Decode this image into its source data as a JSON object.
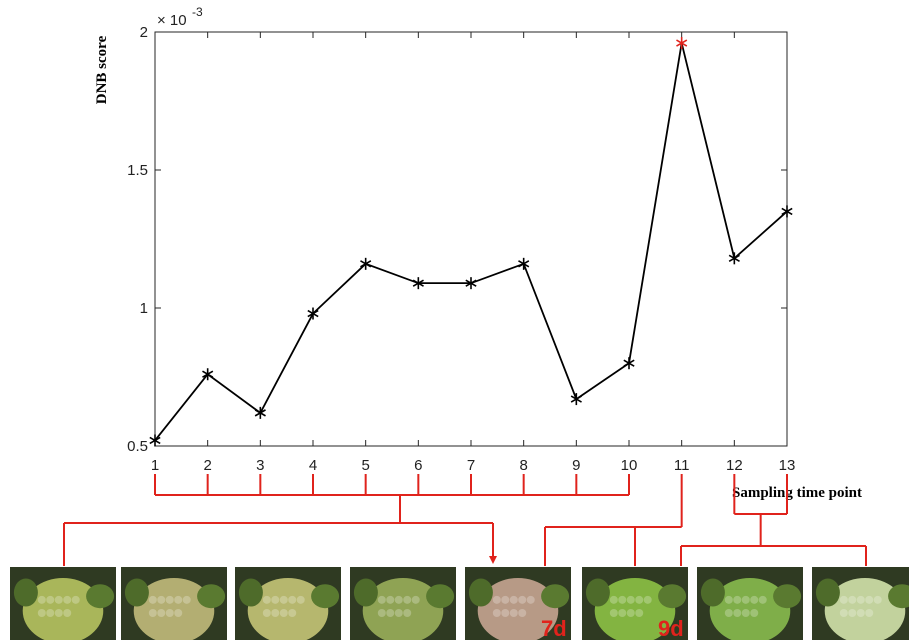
{
  "chart_data": {
    "type": "line",
    "title": "",
    "ylabel": "DNB score",
    "xlabel": "Sampling time point",
    "y_exponent_label": "× 10",
    "y_exponent_power": "-3",
    "ylim": [
      0.5,
      2.0
    ],
    "xlim": [
      1,
      13
    ],
    "x": [
      1,
      2,
      3,
      4,
      5,
      6,
      7,
      8,
      9,
      10,
      11,
      12,
      13
    ],
    "x_tick_labels": [
      "1",
      "2",
      "3",
      "4",
      "5",
      "6",
      "7",
      "8",
      "9",
      "10",
      "11",
      "12",
      "13"
    ],
    "y_ticks": [
      0.5,
      1.0,
      1.5,
      2.0
    ],
    "y_tick_labels": [
      "0.5",
      "1",
      "1.5",
      "2"
    ],
    "series": [
      {
        "values": [
          0.52,
          0.76,
          0.62,
          0.98,
          1.16,
          1.09,
          1.09,
          1.16,
          0.67,
          0.8,
          1.96,
          1.18,
          1.35
        ],
        "line_color": "#000000",
        "marker": "asterisk",
        "highlight_index": 10,
        "highlight_color": "#e0231c"
      }
    ],
    "grid": false
  },
  "annotations": {
    "bracket_color": "#e0231c",
    "groups": [
      {
        "from": 1,
        "to": 10
      },
      {
        "from": 11,
        "to": 11
      },
      {
        "from": 12,
        "to": 13
      }
    ],
    "photos": [
      {
        "day_label": "",
        "tone": "#a9b65a"
      },
      {
        "day_label": "",
        "tone": "#b3ae72"
      },
      {
        "day_label": "",
        "tone": "#b6b76e"
      },
      {
        "day_label": "",
        "tone": "#8fa354"
      },
      {
        "day_label": "7d",
        "tone": "#b79a86"
      },
      {
        "day_label": "9d",
        "tone": "#83b441"
      },
      {
        "day_label": "",
        "tone": "#7fae49"
      },
      {
        "day_label": "",
        "tone": "#c2d29d"
      }
    ]
  }
}
